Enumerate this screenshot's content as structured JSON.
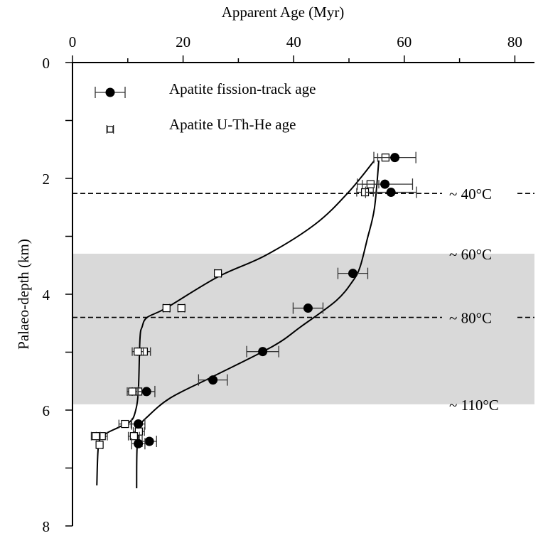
{
  "chart_data": {
    "type": "scatter",
    "xlabel": "Apparent Age (Myr)",
    "ylabel": "Palaeo-depth (km)",
    "xlim": [
      0,
      85
    ],
    "ylim": [
      0,
      8
    ],
    "x_axis_position": "top",
    "x_ticks": [
      0,
      20,
      40,
      60,
      80
    ],
    "x_tick_labels": [
      "0",
      "20",
      "40",
      "60",
      "80"
    ],
    "y_ticks": [
      0,
      2,
      4,
      6,
      8
    ],
    "y_tick_labels": [
      "0",
      "2",
      "4",
      "6",
      "8"
    ],
    "grid": false,
    "legend": {
      "placement": "top-left",
      "entries": [
        {
          "label": "Apatite fission-track age",
          "marker": "filled-circle"
        },
        {
          "label": "Apatite U-Th-He age",
          "marker": "open-square"
        }
      ]
    },
    "series": [
      {
        "name": "Apatite fission-track age",
        "marker": "filled-circle",
        "points": [
          {
            "x": 58.3,
            "y": 1.64,
            "xerr": 3.8
          },
          {
            "x": 56.5,
            "y": 2.1,
            "xerr": 5.0
          },
          {
            "x": 57.6,
            "y": 2.24,
            "xerr": 4.6
          },
          {
            "x": 50.7,
            "y": 3.64,
            "xerr": 2.7
          },
          {
            "x": 42.6,
            "y": 4.24,
            "xerr": 2.7
          },
          {
            "x": 34.4,
            "y": 4.99,
            "xerr": 2.9
          },
          {
            "x": 25.4,
            "y": 5.48,
            "xerr": 2.6
          },
          {
            "x": 13.4,
            "y": 5.68,
            "xerr": 1.5
          },
          {
            "x": 11.9,
            "y": 6.24,
            "xerr": 1.2
          },
          {
            "x": 13.9,
            "y": 6.54,
            "xerr": 1.3
          },
          {
            "x": 11.9,
            "y": 6.58,
            "xerr": 1.2
          }
        ]
      },
      {
        "name": "Apatite U-Th-He age",
        "marker": "open-square",
        "points": [
          {
            "x": 56.6,
            "y": 1.64,
            "xerr": 1.4
          },
          {
            "x": 53.9,
            "y": 2.1,
            "xerr": 1.5
          },
          {
            "x": 52.9,
            "y": 2.24,
            "xerr": 1.5
          },
          {
            "x": 26.3,
            "y": 3.64,
            "xerr": 0.6
          },
          {
            "x": 17.0,
            "y": 4.24,
            "xerr": 0.6
          },
          {
            "x": 19.7,
            "y": 4.24,
            "xerr": 0.6
          },
          {
            "x": 12.9,
            "y": 4.99,
            "xerr": 1.2
          },
          {
            "x": 11.8,
            "y": 4.99,
            "xerr": 1.0
          },
          {
            "x": 11.9,
            "y": 5.68,
            "xerr": 1.1
          },
          {
            "x": 10.8,
            "y": 5.68,
            "xerr": 0.9
          },
          {
            "x": 9.5,
            "y": 6.24,
            "xerr": 1.1
          },
          {
            "x": 12.0,
            "y": 6.37,
            "xerr": 1.0
          },
          {
            "x": 11.1,
            "y": 6.45,
            "xerr": 1.0
          },
          {
            "x": 5.3,
            "y": 6.45,
            "xerr": 1.0
          },
          {
            "x": 4.2,
            "y": 6.45,
            "xerr": 0.8
          },
          {
            "x": 4.9,
            "y": 6.6,
            "xerr": 0.5
          }
        ]
      }
    ],
    "model_curves": [
      {
        "name": "U-Th-He model",
        "x": [
          54.6,
          49.9,
          43.9,
          34.9,
          26.3,
          16.9,
          13.5,
          12.6,
          12.2,
          11.9,
          11.3,
          10.4,
          8.3,
          5.7,
          4.7,
          4.4
        ],
        "y": [
          1.69,
          2.24,
          2.79,
          3.33,
          3.7,
          4.24,
          4.4,
          4.56,
          4.77,
          5.68,
          6.05,
          6.2,
          6.3,
          6.43,
          6.61,
          7.3
        ]
      },
      {
        "name": "Fission-track model",
        "x": [
          55.4,
          54.6,
          53.3,
          52.0,
          50.7,
          47.7,
          41.3,
          36.2,
          25.4,
          17.7,
          13.5,
          12.4,
          11.7,
          11.6
        ],
        "y": [
          1.69,
          2.52,
          3.05,
          3.53,
          3.77,
          4.11,
          4.56,
          4.9,
          5.42,
          5.79,
          6.12,
          6.26,
          6.61,
          7.35
        ]
      }
    ],
    "shaded_band": {
      "y": [
        3.3,
        5.9
      ],
      "color": "#d9d9d9"
    },
    "isotherms": [
      {
        "label": "~ 40°C",
        "y": 2.26,
        "dashed": true
      },
      {
        "label": "~ 60°C",
        "y": 3.3,
        "dashed": false
      },
      {
        "label": "~ 80°C",
        "y": 4.4,
        "dashed": true
      },
      {
        "label": "~ 110°C",
        "y": 5.9,
        "dashed": false
      }
    ]
  }
}
